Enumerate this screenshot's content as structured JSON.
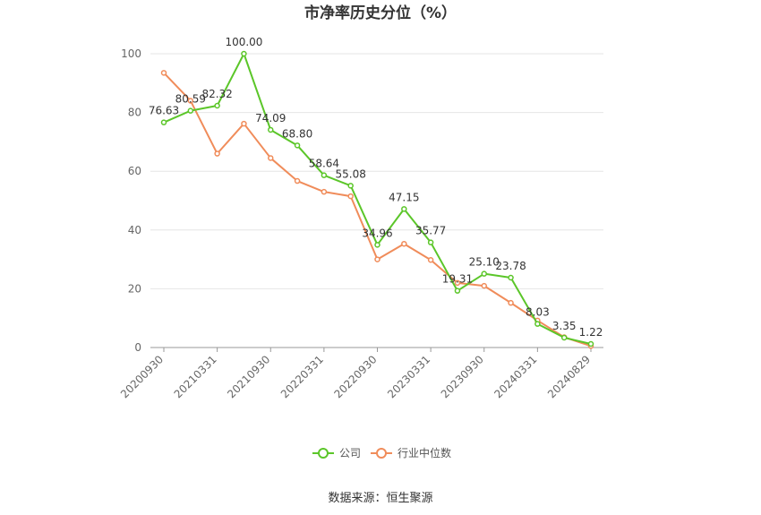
{
  "chart_data": {
    "type": "line",
    "title": "市净率历史分位（%）",
    "xlabel": "",
    "ylabel": "",
    "ylim": [
      0,
      100
    ],
    "yticks": [
      "0",
      "20",
      "40",
      "60",
      "80",
      "100"
    ],
    "x_tick_labels": [
      "20200930",
      "20210331",
      "20210930",
      "20220331",
      "20220930",
      "20230331",
      "20230930",
      "20240331",
      "20240829"
    ],
    "series": [
      {
        "name": "公司",
        "color": "#5bc629",
        "values": [
          76.63,
          80.59,
          82.32,
          100.0,
          74.09,
          68.8,
          58.64,
          55.08,
          34.96,
          47.15,
          35.77,
          19.31,
          25.1,
          23.78,
          8.03,
          3.35,
          1.22
        ],
        "labels": [
          "76.63",
          "80.59",
          "82.32",
          "100.00",
          "74.09",
          "68.80",
          "58.64",
          "55.08",
          "34.96",
          "47.15",
          "35.77",
          "19.31",
          "25.10",
          "23.78",
          "8.03",
          "3.35",
          "1.22"
        ]
      },
      {
        "name": "行业中位数",
        "color": "#f08c5a",
        "values": [
          93.5,
          84.0,
          66.0,
          76.2,
          64.5,
          56.7,
          53.0,
          51.5,
          30.0,
          35.3,
          29.8,
          22.0,
          21.0,
          15.2,
          9.2,
          3.5,
          0.5
        ]
      }
    ],
    "legend_position": "bottom-center",
    "grid": true
  },
  "footer": {
    "source": "数据来源：恒生聚源"
  }
}
